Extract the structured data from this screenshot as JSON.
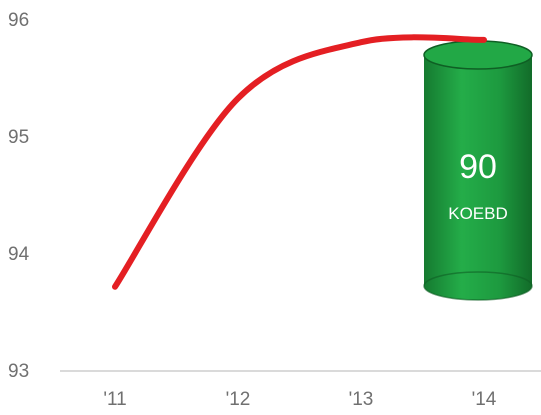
{
  "chart_data": {
    "type": "line",
    "title": "",
    "xlabel": "",
    "ylabel": "",
    "categories": [
      "'11",
      "'12",
      "'13",
      "'14"
    ],
    "ylim": [
      93,
      96
    ],
    "y_ticks": [
      "96",
      "95",
      "94",
      "93"
    ],
    "series": [
      {
        "values": [
          93.72,
          95.33,
          95.81,
          95.83
        ],
        "color": "#e41f23"
      }
    ],
    "annotation": {
      "category": "'14",
      "value_label": "90",
      "unit_label": "KOEBD",
      "color": "#1f9e3e"
    },
    "grid": false,
    "legend": "none"
  }
}
